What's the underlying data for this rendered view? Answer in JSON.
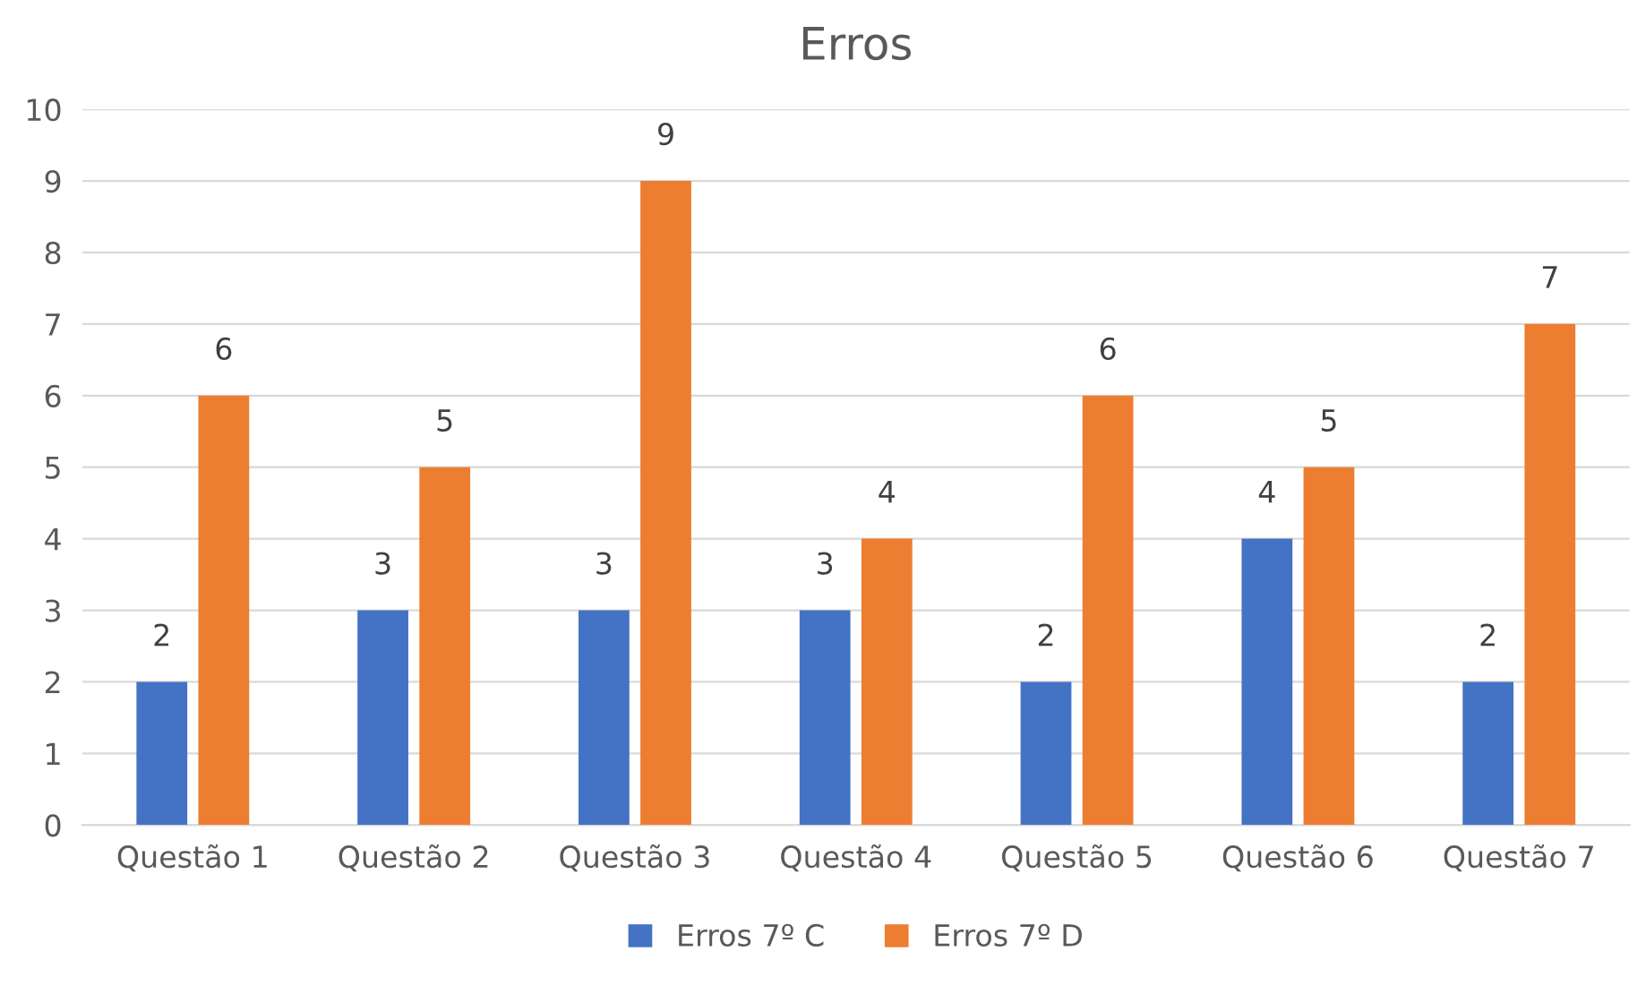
{
  "chart_data": {
    "type": "bar",
    "title": "Erros",
    "categories": [
      "Questão 1",
      "Questão 2",
      "Questão 3",
      "Questão 4",
      "Questão 5",
      "Questão 6",
      "Questão 7"
    ],
    "series": [
      {
        "name": "Erros 7º C",
        "color": "#4472c4",
        "values": [
          2,
          3,
          3,
          3,
          2,
          4,
          2
        ]
      },
      {
        "name": "Erros 7º D",
        "color": "#ed7d31",
        "values": [
          6,
          5,
          9,
          4,
          6,
          5,
          7
        ]
      }
    ],
    "ylim": [
      0,
      10
    ],
    "yticks": [
      0,
      1,
      2,
      3,
      4,
      5,
      6,
      7,
      8,
      9,
      10
    ],
    "grid": "y",
    "legend": "bottom",
    "data_labels": true
  }
}
